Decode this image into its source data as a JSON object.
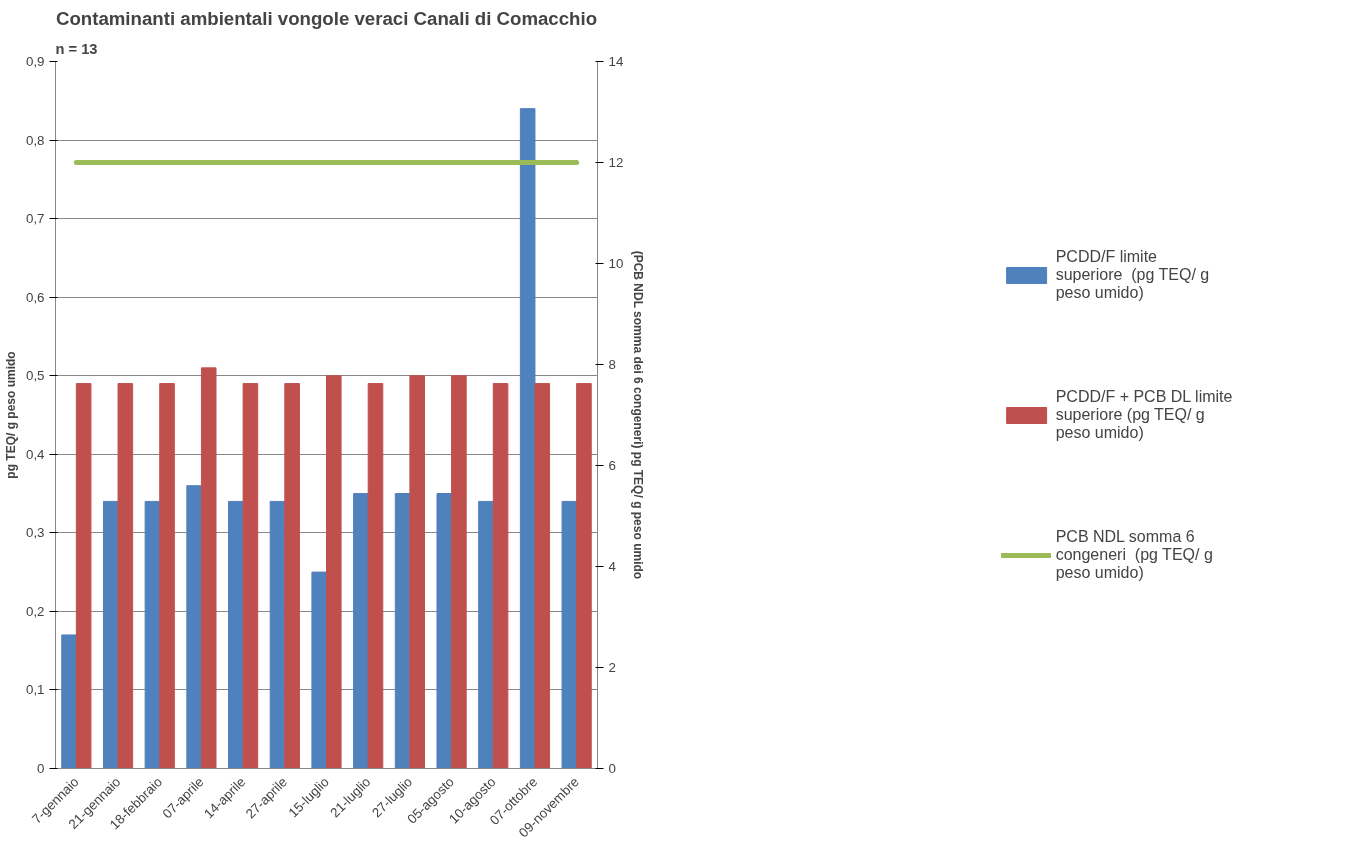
{
  "chart_data": {
    "type": "bar",
    "title": "Contaminanti ambientali vongole veraci Canali di Comacchio",
    "categories": [
      "7-gennaio",
      "21-gennaio",
      "18-febbraio",
      "07-aprile",
      "14-aprile",
      "27-aprile",
      "15-luglio",
      "21-luglio",
      "27-luglio",
      "05-agosto",
      "10-agosto",
      "07-ottobre",
      "09-novembre"
    ],
    "series": [
      {
        "name": "PCDD/F limite superiore  (pg TEQ/ g peso umido)",
        "color": "#4f81bd",
        "values": [
          0.17,
          0.34,
          0.34,
          0.36,
          0.34,
          0.34,
          0.25,
          0.35,
          0.35,
          0.35,
          0.34,
          0.84,
          0.34
        ]
      },
      {
        "name": "PCDD/F + PCB DL limite superiore (pg TEQ/ g peso umido)",
        "color": "#c0504d",
        "values": [
          0.49,
          0.49,
          0.49,
          0.51,
          0.49,
          0.49,
          0.5,
          0.49,
          0.5,
          0.5,
          0.49,
          0.49,
          0.49
        ]
      },
      {
        "name": "PCB NDL somma 6 congeneri  (pg TEQ/ g peso umido)",
        "color": "#9bbb59",
        "type": "line",
        "axis": "y2",
        "values": [
          12,
          12,
          12,
          12,
          12,
          12,
          12,
          12,
          12,
          12,
          12,
          12,
          12
        ]
      }
    ],
    "ylabel": "pg TEQ/ g peso umido",
    "y2label": "(PCB NDL somma dei 6 congeneri) pg TEQ/ g peso umido",
    "ylim": [
      0,
      0.9
    ],
    "yticks": [
      0,
      {
        "value": 0.1,
        "label": "0,1"
      },
      {
        "value": 0.2,
        "label": "0,2"
      },
      {
        "value": 0.3,
        "label": "0,3"
      },
      {
        "value": 0.4,
        "label": "0,4"
      },
      {
        "value": 0.5,
        "label": "0,5"
      },
      {
        "value": 0.6,
        "label": "0,6"
      },
      {
        "value": 0.7,
        "label": "0,7"
      },
      {
        "value": 0.8,
        "label": "0,8"
      },
      {
        "value": 0.9,
        "label": "0,9"
      }
    ],
    "y2lim": [
      0,
      14
    ],
    "y2ticks": [
      0,
      2,
      4,
      6,
      8,
      10,
      12,
      14
    ],
    "grid": "y",
    "legend": "right",
    "annotations": [
      "n = 13"
    ]
  }
}
